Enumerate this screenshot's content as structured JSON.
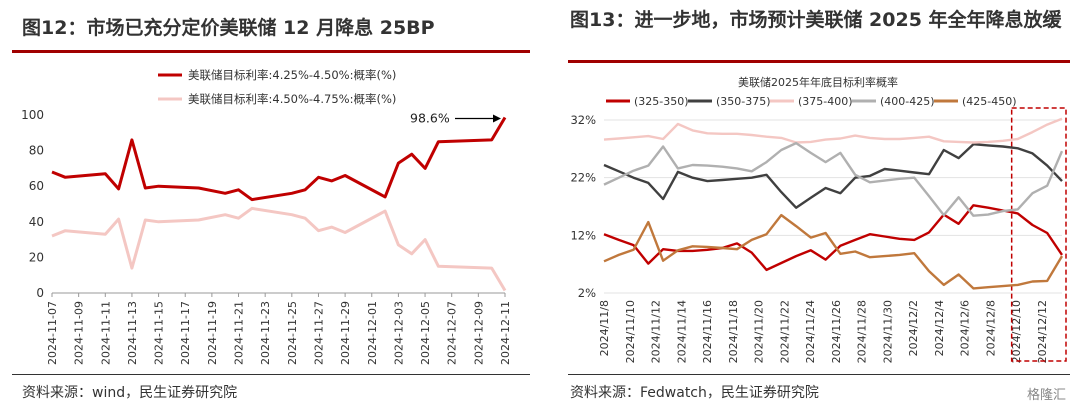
{
  "panel1": {
    "title": "图12：市场已充分定价美联储 12 月降息 25BP",
    "source": "资料来源：wind，民生证券研究院"
  },
  "panel2": {
    "title": "图13：进一步地，市场预计美联储 2025 年全年降息放缓",
    "source": "资料来源：Fedwatch，民生证券研究院",
    "logo_text": "格隆汇"
  },
  "colors": {
    "dark_red": "#c00000",
    "light_pink": "#f4c7c3",
    "dark_gray": "#404040",
    "light_gray": "#b0b0b0",
    "brown": "#c0783c",
    "rule": "#a00000"
  },
  "chart_data": [
    {
      "type": "line",
      "title": "",
      "xlabel": "",
      "ylabel": "",
      "ylim": [
        0,
        100
      ],
      "yticks": [
        0,
        20,
        40,
        60,
        80,
        100
      ],
      "x_ticks": [
        "2024-11-07",
        "2024-11-09",
        "2024-11-11",
        "2024-11-13",
        "2024-11-15",
        "2024-11-17",
        "2024-11-19",
        "2024-11-21",
        "2024-11-23",
        "2024-11-25",
        "2024-11-27",
        "2024-11-29",
        "2024-12-01",
        "2024-12-03",
        "2024-12-05",
        "2024-12-07",
        "2024-12-09",
        "2024-12-11"
      ],
      "annotation": "98.6%",
      "legend_position": "top",
      "series": [
        {
          "name": "美联储目标利率:4.25%-4.50%:概率(%)",
          "color": "#c00000",
          "points": [
            [
              "2024-11-07",
              68
            ],
            [
              "2024-11-08",
              65
            ],
            [
              "2024-11-11",
              67
            ],
            [
              "2024-11-12",
              58.5
            ],
            [
              "2024-11-13",
              86
            ],
            [
              "2024-11-14",
              59
            ],
            [
              "2024-11-15",
              60
            ],
            [
              "2024-11-18",
              59
            ],
            [
              "2024-11-20",
              56
            ],
            [
              "2024-11-21",
              58
            ],
            [
              "2024-11-22",
              52.5
            ],
            [
              "2024-11-25",
              56
            ],
            [
              "2024-11-26",
              58
            ],
            [
              "2024-11-27",
              65
            ],
            [
              "2024-11-28",
              63
            ],
            [
              "2024-11-29",
              66
            ],
            [
              "2024-12-02",
              54
            ],
            [
              "2024-12-03",
              73
            ],
            [
              "2024-12-04",
              78
            ],
            [
              "2024-12-05",
              70
            ],
            [
              "2024-12-06",
              85
            ],
            [
              "2024-12-10",
              86
            ],
            [
              "2024-12-11",
              98.6
            ]
          ]
        },
        {
          "name": "美联储目标利率:4.50%-4.75%:概率(%)",
          "color": "#f4c7c3",
          "points": [
            [
              "2024-11-07",
              32
            ],
            [
              "2024-11-08",
              35
            ],
            [
              "2024-11-11",
              33
            ],
            [
              "2024-11-12",
              41.5
            ],
            [
              "2024-11-13",
              14
            ],
            [
              "2024-11-14",
              41
            ],
            [
              "2024-11-15",
              40
            ],
            [
              "2024-11-18",
              41
            ],
            [
              "2024-11-20",
              44
            ],
            [
              "2024-11-21",
              42
            ],
            [
              "2024-11-22",
              47.5
            ],
            [
              "2024-11-25",
              44
            ],
            [
              "2024-11-26",
              42
            ],
            [
              "2024-11-27",
              35
            ],
            [
              "2024-11-28",
              37
            ],
            [
              "2024-11-29",
              34
            ],
            [
              "2024-12-02",
              46
            ],
            [
              "2024-12-03",
              27
            ],
            [
              "2024-12-04",
              22
            ],
            [
              "2024-12-05",
              30
            ],
            [
              "2024-12-06",
              15
            ],
            [
              "2024-12-10",
              14
            ],
            [
              "2024-12-11",
              1.4
            ]
          ]
        }
      ]
    },
    {
      "type": "line",
      "title": "美联储2025年年底目标利率概率",
      "xlabel": "",
      "ylabel": "",
      "ylim": [
        2,
        32
      ],
      "yticks": [
        "2%",
        "12%",
        "22%",
        "32%"
      ],
      "x_ticks": [
        "2024/11/8",
        "2024/11/10",
        "2024/11/12",
        "2024/11/14",
        "2024/11/16",
        "2024/11/18",
        "2024/11/20",
        "2024/11/22",
        "2024/11/24",
        "2024/11/26",
        "2024/11/28",
        "2024/11/30",
        "2024/12/2",
        "2024/12/4",
        "2024/12/6",
        "2024/12/8",
        "2024/12/10",
        "2024/12/12"
      ],
      "legend_position": "top",
      "highlight_box": "last-two-days",
      "series": [
        {
          "name": "(325-350)",
          "color": "#c00000",
          "values": [
            12.2,
            11.2,
            10.3,
            7.1,
            9.6,
            9.3,
            9.3,
            9.5,
            9.8,
            10.6,
            9.0,
            6.0,
            7.2,
            8.4,
            9.4,
            7.8,
            10.2,
            11.2,
            12.2,
            11.8,
            11.4,
            11.2,
            12.5,
            15.6,
            14.0,
            17.2,
            16.8,
            16.3,
            15.8,
            13.8,
            12.4,
            8.6
          ]
        },
        {
          "name": "(350-375)",
          "color": "#404040",
          "values": [
            24.2,
            23.1,
            22.0,
            21.1,
            18.3,
            23.0,
            22.0,
            21.4,
            21.6,
            21.8,
            22.0,
            22.5,
            19.5,
            16.8,
            18.5,
            20.2,
            19.3,
            22.0,
            22.3,
            23.5,
            23.2,
            22.9,
            22.6,
            26.8,
            25.4,
            27.8,
            27.6,
            27.4,
            27.1,
            26.2,
            24.1,
            21.4
          ]
        },
        {
          "name": "(375-400)",
          "color": "#f4c7c3",
          "values": [
            28.6,
            28.8,
            29.0,
            29.2,
            28.7,
            31.3,
            30.2,
            29.7,
            29.6,
            29.6,
            29.4,
            29.1,
            28.9,
            28.1,
            28.2,
            28.6,
            28.8,
            29.3,
            28.9,
            28.7,
            28.7,
            28.9,
            29.1,
            28.3,
            28.2,
            28.1,
            28.2,
            28.4,
            28.7,
            29.9,
            31.2,
            32.2
          ]
        },
        {
          "name": "(400-425)",
          "color": "#b0b0b0",
          "values": [
            20.8,
            22.0,
            23.2,
            24.1,
            27.4,
            23.6,
            24.2,
            24.1,
            23.9,
            23.6,
            23.1,
            24.7,
            26.8,
            28.0,
            26.3,
            24.7,
            26.3,
            22.5,
            21.2,
            21.5,
            21.8,
            22.0,
            18.8,
            15.5,
            18.6,
            15.4,
            15.6,
            16.2,
            16.5,
            19.3,
            20.6,
            26.6
          ]
        },
        {
          "name": "(425-450)",
          "color": "#c0783c",
          "values": [
            7.5,
            8.6,
            9.5,
            14.3,
            7.6,
            9.4,
            10.1,
            10.0,
            9.8,
            9.6,
            11.2,
            12.2,
            15.5,
            13.6,
            11.6,
            12.4,
            8.8,
            9.2,
            8.2,
            8.4,
            8.6,
            8.9,
            5.8,
            3.4,
            5.2,
            2.8,
            3.0,
            3.2,
            3.4,
            4.0,
            4.1,
            8.4
          ]
        }
      ]
    }
  ]
}
